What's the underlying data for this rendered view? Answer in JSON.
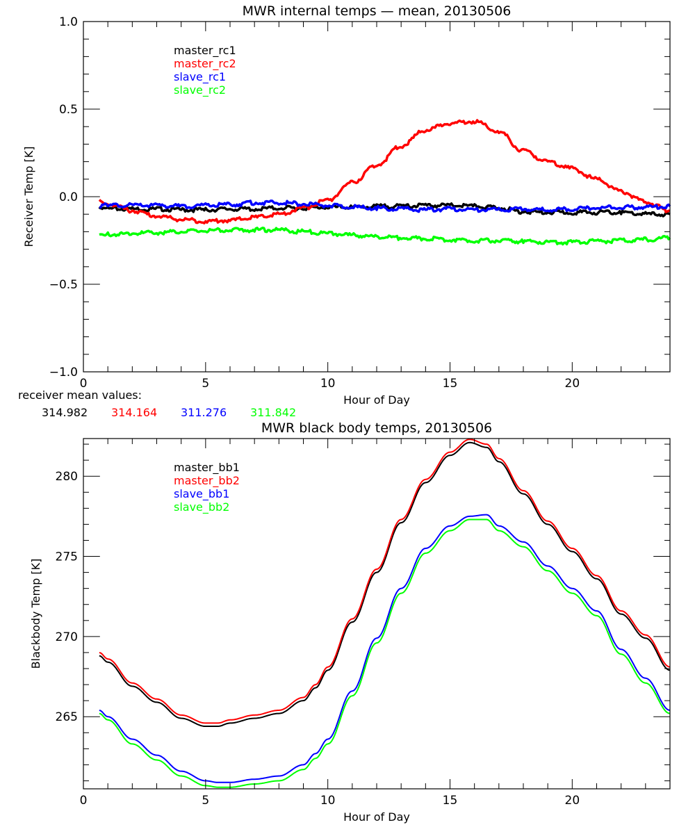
{
  "chart_data": [
    {
      "type": "line",
      "title": "MWR internal temps — mean, 20130506",
      "xlabel": "Hour of Day",
      "ylabel": "Receiver Temp [K]",
      "xlim": [
        0,
        24
      ],
      "ylim": [
        -1.0,
        1.0
      ],
      "xticks": [
        0,
        5,
        10,
        15,
        20
      ],
      "xtick_labels": [
        "0",
        "5",
        "10",
        "15",
        "20"
      ],
      "yticks": [
        -1.0,
        -0.5,
        0.0,
        0.5,
        1.0
      ],
      "ytick_labels": [
        "-1.0",
        "-0.5",
        "0.0",
        "0.5",
        "1.0"
      ],
      "grid": false,
      "legend_position": "top-left",
      "x": [
        0.65,
        1,
        2,
        3,
        4,
        5,
        6,
        7,
        8,
        9,
        10,
        11,
        12,
        13,
        14,
        15,
        16,
        17,
        18,
        19,
        20,
        21,
        22,
        23,
        24
      ],
      "series": [
        {
          "name": "master_rc1",
          "color": "#000000",
          "values": [
            -0.07,
            -0.07,
            -0.07,
            -0.07,
            -0.075,
            -0.075,
            -0.07,
            -0.07,
            -0.065,
            -0.065,
            -0.06,
            -0.06,
            -0.055,
            -0.055,
            -0.05,
            -0.05,
            -0.055,
            -0.065,
            -0.085,
            -0.09,
            -0.09,
            -0.09,
            -0.09,
            -0.1,
            -0.1
          ]
        },
        {
          "name": "master_rc2",
          "color": "#ff0000",
          "values": [
            -0.02,
            -0.04,
            -0.08,
            -0.11,
            -0.13,
            -0.14,
            -0.135,
            -0.12,
            -0.1,
            -0.065,
            -0.02,
            0.08,
            0.18,
            0.29,
            0.38,
            0.42,
            0.43,
            0.37,
            0.26,
            0.2,
            0.16,
            0.1,
            0.03,
            -0.03,
            -0.08
          ]
        },
        {
          "name": "slave_rc1",
          "color": "#0000ff",
          "values": [
            -0.05,
            -0.05,
            -0.05,
            -0.05,
            -0.055,
            -0.05,
            -0.045,
            -0.035,
            -0.035,
            -0.04,
            -0.05,
            -0.06,
            -0.065,
            -0.07,
            -0.075,
            -0.07,
            -0.075,
            -0.075,
            -0.07,
            -0.075,
            -0.07,
            -0.065,
            -0.06,
            -0.06,
            -0.055
          ]
        },
        {
          "name": "slave_rc2",
          "color": "#00ff00",
          "values": [
            -0.22,
            -0.215,
            -0.21,
            -0.205,
            -0.2,
            -0.195,
            -0.19,
            -0.19,
            -0.19,
            -0.2,
            -0.21,
            -0.22,
            -0.23,
            -0.235,
            -0.24,
            -0.245,
            -0.25,
            -0.25,
            -0.255,
            -0.26,
            -0.26,
            -0.255,
            -0.25,
            -0.245,
            -0.235
          ]
        }
      ],
      "annotation": {
        "label": "receiver mean values:",
        "values": [
          {
            "text": "314.982",
            "color": "#000000"
          },
          {
            "text": "314.164",
            "color": "#ff0000"
          },
          {
            "text": "311.276",
            "color": "#0000ff"
          },
          {
            "text": "311.842",
            "color": "#00ff00"
          }
        ]
      }
    },
    {
      "type": "line",
      "title": "MWR black body temps, 20130506",
      "xlabel": "Hour of Day",
      "ylabel": "Blackbody Temp [K]",
      "xlim": [
        0,
        24
      ],
      "ylim": [
        260.5,
        282.35
      ],
      "xticks": [
        0,
        5,
        10,
        15,
        20
      ],
      "xtick_labels": [
        "0",
        "5",
        "10",
        "15",
        "20"
      ],
      "yticks": [
        265,
        270,
        275,
        280
      ],
      "ytick_labels": [
        "265",
        "270",
        "275",
        "280"
      ],
      "grid": false,
      "legend_position": "top-left",
      "x": [
        0.65,
        1,
        2,
        3,
        4,
        5,
        5.5,
        6,
        7,
        8,
        9,
        9.5,
        10,
        11,
        12,
        13,
        14,
        15,
        15.8,
        16.5,
        17,
        18,
        19,
        20,
        21,
        22,
        23,
        24
      ],
      "series": [
        {
          "name": "master_bb1",
          "color": "#000000",
          "values": [
            268.8,
            268.4,
            266.9,
            265.9,
            264.9,
            264.4,
            264.4,
            264.6,
            264.9,
            265.2,
            266.0,
            266.8,
            267.9,
            270.9,
            274.0,
            277.1,
            279.6,
            281.3,
            282.1,
            281.8,
            280.9,
            278.9,
            277.0,
            275.3,
            273.6,
            271.4,
            269.9,
            267.9
          ]
        },
        {
          "name": "master_bb2",
          "color": "#ff0000",
          "values": [
            269.0,
            268.6,
            267.1,
            266.1,
            265.1,
            264.6,
            264.6,
            264.8,
            265.1,
            265.4,
            266.2,
            267.0,
            268.1,
            271.1,
            274.2,
            277.3,
            279.8,
            281.5,
            282.3,
            282.0,
            281.1,
            279.1,
            277.2,
            275.5,
            273.8,
            271.6,
            270.1,
            268.1
          ]
        },
        {
          "name": "slave_bb1",
          "color": "#0000ff",
          "values": [
            265.4,
            265.0,
            263.6,
            262.6,
            261.6,
            261.0,
            260.9,
            260.9,
            261.1,
            261.3,
            262.0,
            262.7,
            263.6,
            266.6,
            269.9,
            273.0,
            275.5,
            276.9,
            277.5,
            277.6,
            276.9,
            275.9,
            274.4,
            273.0,
            271.6,
            269.2,
            267.4,
            265.4
          ]
        },
        {
          "name": "slave_bb2",
          "color": "#00ff00",
          "values": [
            265.2,
            264.8,
            263.3,
            262.3,
            261.3,
            260.7,
            260.6,
            260.6,
            260.8,
            261.0,
            261.7,
            262.4,
            263.3,
            266.3,
            269.6,
            272.7,
            275.2,
            276.6,
            277.3,
            277.3,
            276.6,
            275.6,
            274.1,
            272.7,
            271.3,
            268.9,
            267.1,
            265.2
          ]
        }
      ]
    }
  ]
}
